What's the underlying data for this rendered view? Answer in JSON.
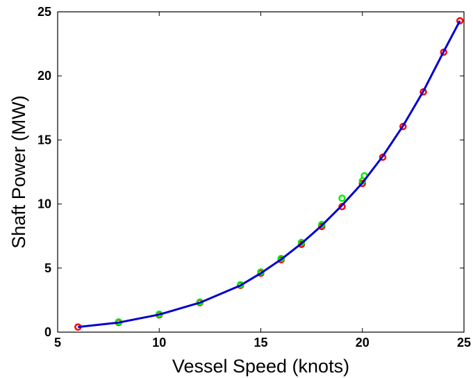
{
  "chart_data": {
    "type": "scatter",
    "xlabel": "Vessel Speed (knots)",
    "ylabel": "Shaft Power (MW)",
    "xlim": [
      5,
      25
    ],
    "ylim": [
      0,
      25
    ],
    "xticks": [
      5,
      10,
      15,
      20,
      25
    ],
    "yticks": [
      0,
      5,
      10,
      15,
      20,
      25
    ],
    "grid": false,
    "legend": "none",
    "series": [
      {
        "kind": "points",
        "marker": "circle",
        "color": "#ff0000",
        "x": [
          6,
          8,
          10,
          12,
          14,
          15,
          16,
          17,
          18,
          19,
          20,
          21,
          22,
          23,
          24,
          24.8
        ],
        "y": [
          0.4,
          0.75,
          1.35,
          2.3,
          3.65,
          4.6,
          5.65,
          6.85,
          8.25,
          9.8,
          11.6,
          13.65,
          16.05,
          18.75,
          21.85,
          24.3
        ]
      },
      {
        "kind": "points",
        "marker": "circle",
        "color": "#00ee00",
        "x": [
          8,
          10,
          12,
          14,
          15,
          16,
          17,
          18,
          19,
          20,
          20.1
        ],
        "y": [
          0.8,
          1.4,
          2.35,
          3.7,
          4.7,
          5.75,
          7.0,
          8.4,
          10.45,
          11.8,
          12.2
        ]
      },
      {
        "kind": "line",
        "color": "#0000cc",
        "x": [
          6,
          8,
          10,
          12,
          14,
          15,
          16,
          17,
          18,
          19,
          20,
          21,
          22,
          23,
          24,
          24.8
        ],
        "y": [
          0.4,
          0.75,
          1.37,
          2.3,
          3.65,
          4.6,
          5.68,
          6.92,
          8.32,
          9.9,
          11.65,
          13.72,
          16.1,
          18.8,
          21.9,
          24.3
        ]
      }
    ]
  }
}
